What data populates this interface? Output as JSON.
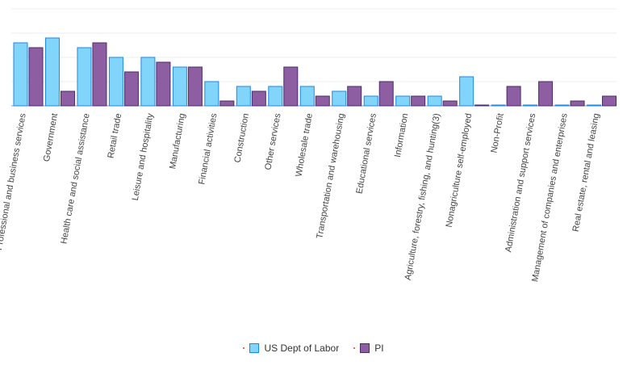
{
  "chart_data": {
    "type": "bar",
    "categories": [
      "Professional and business services",
      "Government",
      "Health care and social assistance",
      "Retail trade",
      "Leisure and hospitality",
      "Manufacturing",
      "Financial activities",
      "Construction",
      "Other services",
      "Wholesale trade",
      "Transportation and warehousing",
      "Educational services",
      "Information",
      "Agriculture, forestry, fishing, and hunting(3)",
      "Nonagriculture self-employed",
      "Non-Profit",
      "Administration and support services",
      "Management of companies and enterprises",
      "Real estate, rental and leasing"
    ],
    "series": [
      {
        "name": "US Dept of Labor",
        "color": "#81d4fa",
        "stroke": "#1e88e5",
        "values": [
          13,
          14,
          12,
          10,
          10,
          8,
          5,
          4,
          4,
          4,
          3,
          2,
          2,
          2,
          6,
          0.1,
          0.1,
          0.1,
          0.1
        ]
      },
      {
        "name": "PI",
        "color": "#8e5ea2",
        "stroke": "#4a2c6a",
        "values": [
          12,
          3,
          13,
          7,
          9,
          8,
          1,
          3,
          8,
          2,
          4,
          5,
          2,
          1,
          0.1,
          4,
          5,
          1,
          2
        ]
      }
    ],
    "ylim": [
      0,
      20
    ],
    "grid": true,
    "legend_position": "bottom-center"
  }
}
